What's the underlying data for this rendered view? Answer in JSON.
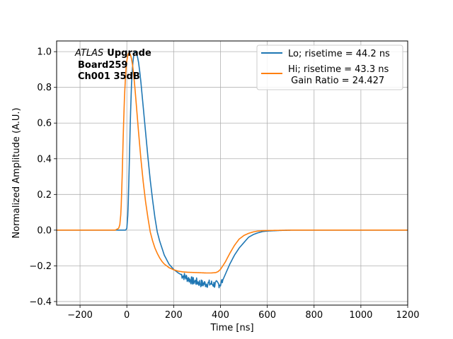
{
  "chart_data": {
    "type": "line",
    "xlabel": "Time [ns]",
    "ylabel": "Normalized Amplitude (A.U.)",
    "xlim": [
      -300,
      1200
    ],
    "ylim": [
      -0.42,
      1.06
    ],
    "xticks": [
      -200,
      0,
      200,
      400,
      600,
      800,
      1000,
      1200
    ],
    "xtick_labels": [
      "−200",
      "0",
      "200",
      "400",
      "600",
      "800",
      "1000",
      "1200"
    ],
    "yticks": [
      -0.4,
      -0.2,
      0.0,
      0.2,
      0.4,
      0.6,
      0.8,
      1.0
    ],
    "ytick_labels": [
      "−0.4",
      "−0.2",
      "0.0",
      "0.2",
      "0.4",
      "0.6",
      "0.8",
      "1.0"
    ],
    "grid": true,
    "legend_position": "top-right",
    "annotation": {
      "atlas": "ATLAS",
      "upgrade": "Upgrade",
      "board": "Board259",
      "channel": "Ch001 35dB"
    },
    "series": [
      {
        "name": "Lo; risetime = 44.2 ns",
        "color": "#1f77b4",
        "x": [
          -300,
          -20,
          -5,
          0,
          5,
          10,
          15,
          20,
          25,
          30,
          35,
          40,
          45,
          50,
          55,
          60,
          65,
          70,
          80,
          90,
          100,
          110,
          120,
          130,
          140,
          150,
          160,
          180,
          200,
          220,
          240,
          260,
          280,
          300,
          320,
          340,
          360,
          380,
          400,
          410,
          420,
          440,
          460,
          480,
          500,
          520,
          540,
          560,
          580,
          600,
          650,
          700,
          800,
          1000,
          1200
        ],
        "y": [
          0.0,
          0.0,
          0.0,
          0.01,
          0.1,
          0.35,
          0.62,
          0.82,
          0.93,
          0.985,
          1.0,
          0.995,
          0.975,
          0.94,
          0.89,
          0.83,
          0.76,
          0.69,
          0.55,
          0.41,
          0.28,
          0.17,
          0.07,
          -0.01,
          -0.06,
          -0.1,
          -0.14,
          -0.19,
          -0.22,
          -0.24,
          -0.255,
          -0.27,
          -0.285,
          -0.29,
          -0.3,
          -0.3,
          -0.3,
          -0.305,
          -0.3,
          -0.28,
          -0.25,
          -0.19,
          -0.14,
          -0.1,
          -0.07,
          -0.04,
          -0.025,
          -0.015,
          -0.008,
          -0.005,
          -0.002,
          0.0,
          0.0,
          0.0,
          0.0
        ]
      },
      {
        "name": "Hi; risetime = 43.3 ns\n Gain Ratio = 24.427",
        "color": "#ff7f0e",
        "x": [
          -300,
          -50,
          -35,
          -30,
          -25,
          -20,
          -15,
          -10,
          -5,
          0,
          5,
          10,
          15,
          20,
          25,
          30,
          35,
          40,
          50,
          60,
          70,
          80,
          90,
          100,
          110,
          120,
          130,
          140,
          150,
          160,
          180,
          200,
          220,
          240,
          260,
          280,
          300,
          320,
          340,
          360,
          380,
          390,
          400,
          420,
          440,
          460,
          480,
          500,
          520,
          540,
          560,
          580,
          600,
          700,
          800,
          1000,
          1200
        ],
        "y": [
          0.0,
          0.0,
          0.01,
          0.03,
          0.1,
          0.3,
          0.55,
          0.75,
          0.88,
          0.95,
          0.985,
          0.995,
          0.985,
          0.96,
          0.92,
          0.86,
          0.79,
          0.71,
          0.55,
          0.4,
          0.27,
          0.16,
          0.07,
          -0.01,
          -0.06,
          -0.1,
          -0.13,
          -0.155,
          -0.175,
          -0.19,
          -0.21,
          -0.222,
          -0.23,
          -0.234,
          -0.236,
          -0.237,
          -0.238,
          -0.239,
          -0.24,
          -0.24,
          -0.238,
          -0.232,
          -0.22,
          -0.18,
          -0.13,
          -0.085,
          -0.05,
          -0.03,
          -0.018,
          -0.01,
          -0.005,
          -0.003,
          -0.002,
          0.0,
          0.0,
          0.0,
          0.0
        ]
      }
    ]
  }
}
